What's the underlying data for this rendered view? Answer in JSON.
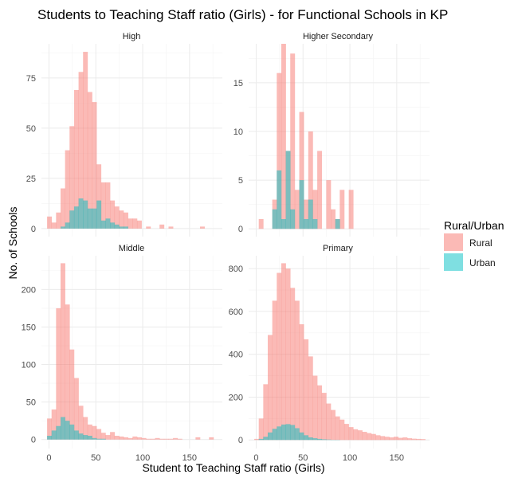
{
  "chart_data": {
    "type": "histogram-facet",
    "title": "Students to Teaching Staff ratio (Girls) - for Functional Schools in KP",
    "xlabel": "Student to Teaching Staff ratio (Girls)",
    "ylabel": "No. of Schools",
    "legend": {
      "title": "Rural/Urban",
      "placement": "right",
      "entries": [
        {
          "label": "Rural",
          "color": "#F8766D"
        },
        {
          "label": "Urban",
          "color": "#00BFC4"
        }
      ]
    },
    "xlim": [
      -8,
      185
    ],
    "bin_width": 4.8,
    "bin_start": -2,
    "x_ticks": [
      0,
      50,
      100,
      150
    ],
    "x_tick_labels": [
      "0",
      "50",
      "100",
      "150"
    ],
    "grid": true,
    "panels": [
      {
        "name": "High",
        "ylim": [
          -4,
          92
        ],
        "y_ticks": [
          0,
          25,
          50,
          75
        ],
        "y_tick_labels": [
          "0",
          "25",
          "50",
          "75"
        ],
        "rural": [
          6,
          3,
          8,
          20,
          39,
          51,
          69,
          78,
          88,
          68,
          63,
          32,
          23,
          23,
          14,
          11,
          9,
          8,
          5,
          5,
          4,
          0,
          1,
          0,
          0,
          2,
          0,
          1,
          0,
          0,
          0,
          0,
          0,
          0,
          1,
          0,
          0,
          0
        ],
        "urban": [
          0,
          0,
          0,
          1,
          3,
          9,
          11,
          15,
          14,
          10,
          10,
          14,
          4,
          5,
          3,
          2,
          1,
          1,
          0,
          0,
          0,
          0,
          0,
          0,
          0,
          0,
          0,
          0,
          0,
          0,
          0,
          0,
          0,
          0,
          0,
          0,
          0,
          0
        ]
      },
      {
        "name": "Higher Secondary",
        "ylim": [
          -0.8,
          19
        ],
        "y_ticks": [
          0,
          5,
          10,
          15
        ],
        "y_tick_labels": [
          "0",
          "5",
          "10",
          "15"
        ],
        "rural": [
          0,
          1,
          0,
          0,
          3,
          16,
          19,
          8,
          18,
          4,
          12,
          3,
          10,
          4,
          8,
          0,
          5,
          2,
          1,
          4,
          0,
          4,
          0,
          0,
          0,
          0,
          0,
          0,
          0,
          0,
          0,
          0,
          0,
          0,
          0,
          0,
          0,
          0
        ],
        "urban": [
          0,
          0,
          0,
          0,
          2,
          6,
          1,
          8,
          2,
          0,
          5,
          1,
          3,
          1,
          0,
          0,
          0,
          0,
          1,
          0,
          0,
          0,
          0,
          0,
          0,
          0,
          0,
          0,
          0,
          0,
          0,
          0,
          0,
          0,
          0,
          0,
          0,
          0
        ]
      },
      {
        "name": "Middle",
        "ylim": [
          -12,
          245
        ],
        "y_ticks": [
          0,
          50,
          100,
          150,
          200
        ],
        "y_tick_labels": [
          "0",
          "50",
          "100",
          "150",
          "200"
        ],
        "rural": [
          28,
          40,
          175,
          235,
          180,
          120,
          82,
          45,
          30,
          20,
          18,
          14,
          9,
          6,
          10,
          5,
          4,
          3,
          2,
          4,
          3,
          2,
          1,
          1,
          2,
          1,
          1,
          1,
          2,
          1,
          0,
          0,
          0,
          3,
          0,
          0,
          3,
          0
        ],
        "urban": [
          5,
          12,
          18,
          30,
          25,
          20,
          12,
          8,
          6,
          5,
          2,
          1,
          1,
          0,
          0,
          0,
          0,
          0,
          0,
          0,
          0,
          0,
          0,
          0,
          0,
          0,
          0,
          0,
          0,
          0,
          0,
          0,
          0,
          0,
          0,
          0,
          0,
          0
        ]
      },
      {
        "name": "Primary",
        "ylim": [
          -40,
          860
        ],
        "y_ticks": [
          0,
          200,
          400,
          600,
          800
        ],
        "y_tick_labels": [
          "0",
          "200",
          "400",
          "600",
          "800"
        ],
        "rural": [
          5,
          100,
          260,
          490,
          650,
          780,
          825,
          800,
          710,
          650,
          540,
          470,
          390,
          300,
          255,
          220,
          170,
          140,
          110,
          95,
          75,
          60,
          50,
          45,
          38,
          32,
          28,
          22,
          18,
          15,
          12,
          15,
          10,
          12,
          8,
          6,
          5,
          4
        ],
        "urban": [
          0,
          5,
          15,
          35,
          52,
          63,
          72,
          74,
          70,
          55,
          35,
          22,
          12,
          8,
          5,
          3,
          2,
          1,
          1,
          0,
          0,
          0,
          0,
          0,
          0,
          0,
          0,
          0,
          0,
          0,
          0,
          0,
          0,
          0,
          0,
          0,
          0,
          0
        ]
      }
    ]
  }
}
